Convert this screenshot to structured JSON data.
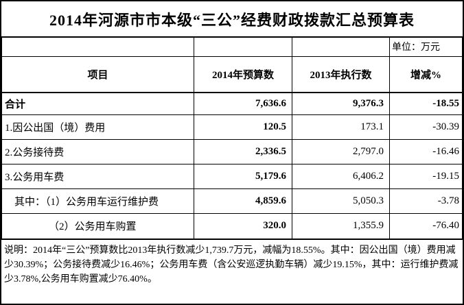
{
  "title": "2014年河源市市本级“三公”经费财政拨款汇总预算表",
  "unit_label": "单位：万元",
  "table": {
    "columns": [
      "项目",
      "2014年预算数",
      "2013年执行数",
      "增减%"
    ],
    "rows": [
      {
        "item": "合计",
        "budget_2014": "7,636.6",
        "actual_2013": "9,376.3",
        "change_pct": "-18.55",
        "bold": true,
        "indent": 0
      },
      {
        "item": "1.因公出国（境）费用",
        "budget_2014": "120.5",
        "actual_2013": "173.1",
        "change_pct": "-30.39",
        "bold": false,
        "indent": 0
      },
      {
        "item": "2.公务接待费",
        "budget_2014": "2,336.5",
        "actual_2013": "2,797.0",
        "change_pct": "-16.46",
        "bold": false,
        "indent": 0
      },
      {
        "item": "3.公务用车费",
        "budget_2014": "5,179.6",
        "actual_2013": "6,406.2",
        "change_pct": "-19.15",
        "bold": false,
        "indent": 0
      },
      {
        "item": "其中：（1）公务用车运行维护费",
        "budget_2014": "4,859.6",
        "actual_2013": "5,050.3",
        "change_pct": "-3.78",
        "bold": false,
        "indent": 1
      },
      {
        "item": "（2）公务用车购置",
        "budget_2014": "320.0",
        "actual_2013": "1,355.9",
        "change_pct": "-76.40",
        "bold": false,
        "indent": 2
      }
    ]
  },
  "note": "说明：2014年“三公”预算数比2013年执行数减少1,739.7万元，减幅为18.55%。其中：因公出国（境）费用减少30.39%；公务接待费减少16.46%；公务用车费（含公安巡逻执勤车辆）减少19.15%，其中：运行维护费减少3.78%,公务用车购置减少76.40%。"
}
